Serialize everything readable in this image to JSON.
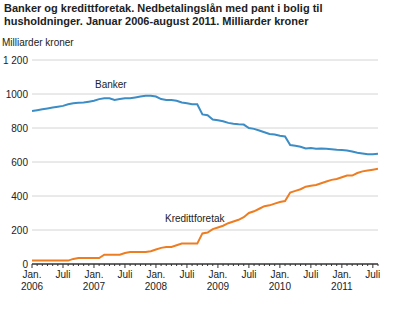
{
  "chart_data": {
    "type": "line",
    "title": "Banker og kredittforetak. Nedbetalingslån med pant i bolig til\nhusholdninger. Januar 2006-august 2011. Milliarder kroner",
    "y_label": "Milliarder kroner",
    "categories": [
      "Jan.\n2006",
      null,
      null,
      null,
      null,
      null,
      "Juli",
      null,
      null,
      null,
      null,
      null,
      "Jan.\n2007",
      null,
      null,
      null,
      null,
      null,
      "Juli",
      null,
      null,
      null,
      null,
      null,
      "Jan.\n2008",
      null,
      null,
      null,
      null,
      null,
      "Juli",
      null,
      null,
      null,
      null,
      null,
      "Jan.\n2009",
      null,
      null,
      null,
      null,
      null,
      "Juli",
      null,
      null,
      null,
      null,
      null,
      "Jan.\n2010",
      null,
      null,
      null,
      null,
      null,
      "Juli",
      null,
      null,
      null,
      null,
      null,
      "Jan.\n2011",
      null,
      null,
      null,
      null,
      null,
      "Juli",
      null
    ],
    "series": [
      {
        "name": "Banker",
        "color": "#3c8dc5",
        "values": [
          900,
          905,
          910,
          915,
          920,
          925,
          930,
          940,
          945,
          948,
          950,
          955,
          960,
          970,
          975,
          975,
          965,
          970,
          975,
          975,
          980,
          985,
          990,
          990,
          985,
          970,
          965,
          965,
          960,
          950,
          945,
          940,
          940,
          880,
          875,
          850,
          845,
          840,
          830,
          825,
          822,
          820,
          800,
          795,
          785,
          775,
          765,
          762,
          755,
          750,
          700,
          695,
          690,
          680,
          682,
          678,
          680,
          678,
          675,
          672,
          670,
          668,
          662,
          655,
          650,
          645,
          645,
          648
        ]
      },
      {
        "name": "Kredittforetak",
        "color": "#ee7d22",
        "values": [
          20,
          20,
          20,
          20,
          20,
          20,
          20,
          20,
          30,
          35,
          35,
          35,
          35,
          35,
          55,
          55,
          55,
          55,
          65,
          70,
          70,
          70,
          70,
          75,
          85,
          95,
          100,
          100,
          110,
          120,
          120,
          120,
          120,
          180,
          185,
          205,
          215,
          225,
          240,
          250,
          260,
          275,
          300,
          310,
          325,
          340,
          345,
          355,
          365,
          370,
          420,
          430,
          440,
          455,
          460,
          465,
          475,
          485,
          495,
          500,
          510,
          520,
          520,
          535,
          545,
          550,
          555,
          560
        ]
      }
    ],
    "ylim": [
      0,
      1200
    ],
    "yticks": [
      0,
      200,
      400,
      600,
      800,
      1000,
      {
        "value": 1200,
        "label": "1 200"
      }
    ],
    "grid": true
  }
}
